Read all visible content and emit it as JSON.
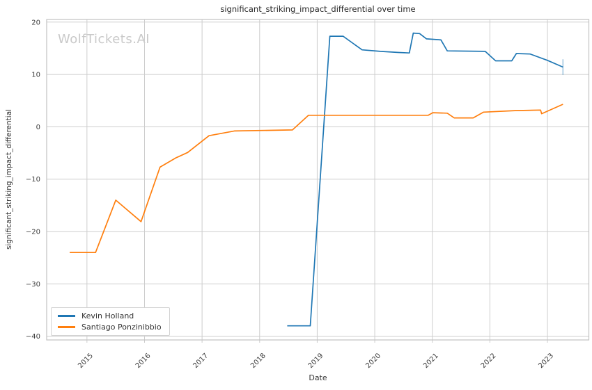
{
  "watermark": "WolfTickets.AI",
  "chart_data": {
    "type": "line",
    "title": "significant_striking_impact_differential over time",
    "xlabel": "Date",
    "ylabel": "significant_striking_impact_differential",
    "xlim": [
      2014.3,
      2023.72
    ],
    "ylim": [
      -40.7,
      20.5
    ],
    "grid": true,
    "legend_position": "lower-left",
    "x_ticks": [
      2015,
      2016,
      2017,
      2018,
      2019,
      2020,
      2021,
      2022,
      2023
    ],
    "x_tick_labels": [
      "2015",
      "2016",
      "2017",
      "2018",
      "2019",
      "2020",
      "2021",
      "2022",
      "2023"
    ],
    "y_ticks": [
      20,
      10,
      0,
      -10,
      -20,
      -30,
      -40
    ],
    "y_tick_labels": [
      "20",
      "10",
      "0",
      "−10",
      "−20",
      "−30",
      "−40"
    ],
    "series": [
      {
        "name": "Kevin Holland",
        "color": "#1f77b4",
        "points": [
          [
            2018.48,
            -38.0
          ],
          [
            2018.88,
            -38.0
          ],
          [
            2019.22,
            17.3
          ],
          [
            2019.45,
            17.3
          ],
          [
            2019.78,
            14.7
          ],
          [
            2020.1,
            14.4
          ],
          [
            2020.42,
            14.2
          ],
          [
            2020.6,
            14.1
          ],
          [
            2020.67,
            17.9
          ],
          [
            2020.78,
            17.8
          ],
          [
            2020.9,
            16.8
          ],
          [
            2021.15,
            16.6
          ],
          [
            2021.26,
            14.5
          ],
          [
            2021.92,
            14.4
          ],
          [
            2022.1,
            12.6
          ],
          [
            2022.38,
            12.6
          ],
          [
            2022.46,
            14.0
          ],
          [
            2022.7,
            13.9
          ],
          [
            2023.0,
            12.7
          ],
          [
            2023.27,
            11.4
          ]
        ]
      },
      {
        "name": "Santiago Ponzinibbio",
        "color": "#ff7f0e",
        "points": [
          [
            2014.7,
            -24.0
          ],
          [
            2015.15,
            -24.0
          ],
          [
            2015.5,
            -14.0
          ],
          [
            2015.94,
            -18.1
          ],
          [
            2016.27,
            -7.7
          ],
          [
            2016.55,
            -5.9
          ],
          [
            2016.75,
            -4.9
          ],
          [
            2017.12,
            -1.7
          ],
          [
            2017.56,
            -0.8
          ],
          [
            2018.57,
            -0.6
          ],
          [
            2018.85,
            2.2
          ],
          [
            2020.93,
            2.2
          ],
          [
            2021.01,
            2.7
          ],
          [
            2021.26,
            2.6
          ],
          [
            2021.38,
            1.7
          ],
          [
            2021.71,
            1.7
          ],
          [
            2021.89,
            2.8
          ],
          [
            2022.44,
            3.1
          ],
          [
            2022.88,
            3.2
          ],
          [
            2022.9,
            2.5
          ],
          [
            2023.27,
            4.3
          ]
        ]
      }
    ],
    "error_bar": {
      "series": "Kevin Holland",
      "x": 2023.27,
      "center": 11.4,
      "low": 9.9,
      "high": 12.9
    }
  },
  "legend": {
    "items": [
      {
        "label": "Kevin Holland",
        "color": "#1f77b4"
      },
      {
        "label": "Santiago Ponzinibbio",
        "color": "#ff7f0e"
      }
    ]
  },
  "colors": {
    "background": "#ffffff",
    "grid": "#cdcdcd",
    "frame": "#c2c2c2",
    "tick_text": "#3b3b3b",
    "title_text": "#262626",
    "watermark": "#c9c9c9",
    "series_blue": "#1f77b4",
    "series_orange": "#ff7f0e",
    "error_bar": "rgba(31,119,180,0.4)"
  }
}
